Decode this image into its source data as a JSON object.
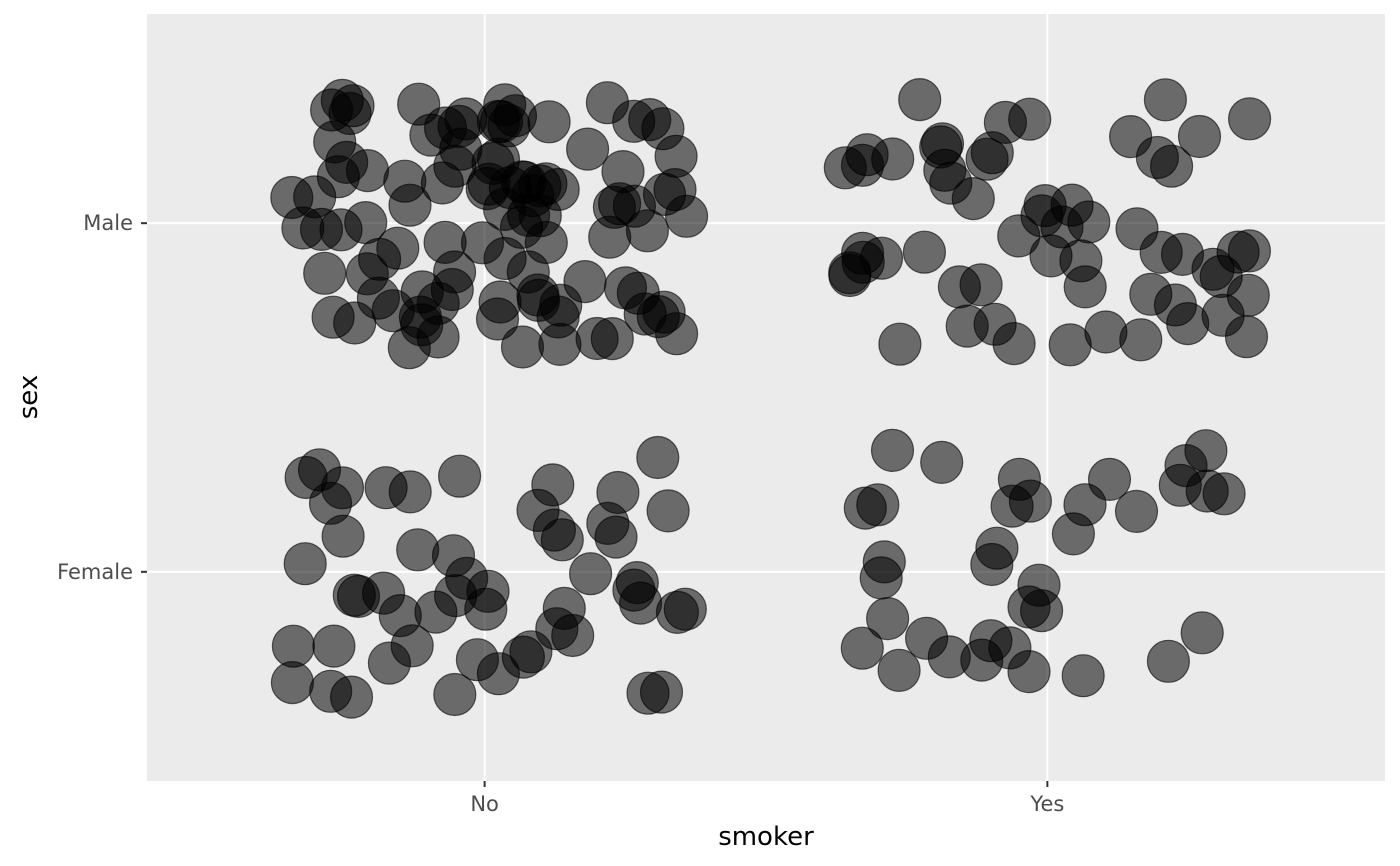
{
  "chart_data": {
    "type": "scatter",
    "jitter": true,
    "x_axis": {
      "label": "smoker",
      "categories": [
        "No",
        "Yes"
      ]
    },
    "y_axis": {
      "label": "sex",
      "categories": [
        "Female",
        "Male"
      ]
    },
    "grid": true,
    "legend": "none",
    "colors": {
      "panel": "#ebebeb",
      "gridline": "#ffffff",
      "point_fill": "#000000",
      "point_opacity": 0.55
    },
    "counts": [
      {
        "x": "No",
        "y": "Male",
        "n": 98
      },
      {
        "x": "No",
        "y": "Female",
        "n": 52
      },
      {
        "x": "Yes",
        "y": "Male",
        "n": 57
      },
      {
        "x": "Yes",
        "y": "Female",
        "n": 35
      }
    ],
    "jitter_width": 0.4,
    "jitter_height": 0.4
  }
}
